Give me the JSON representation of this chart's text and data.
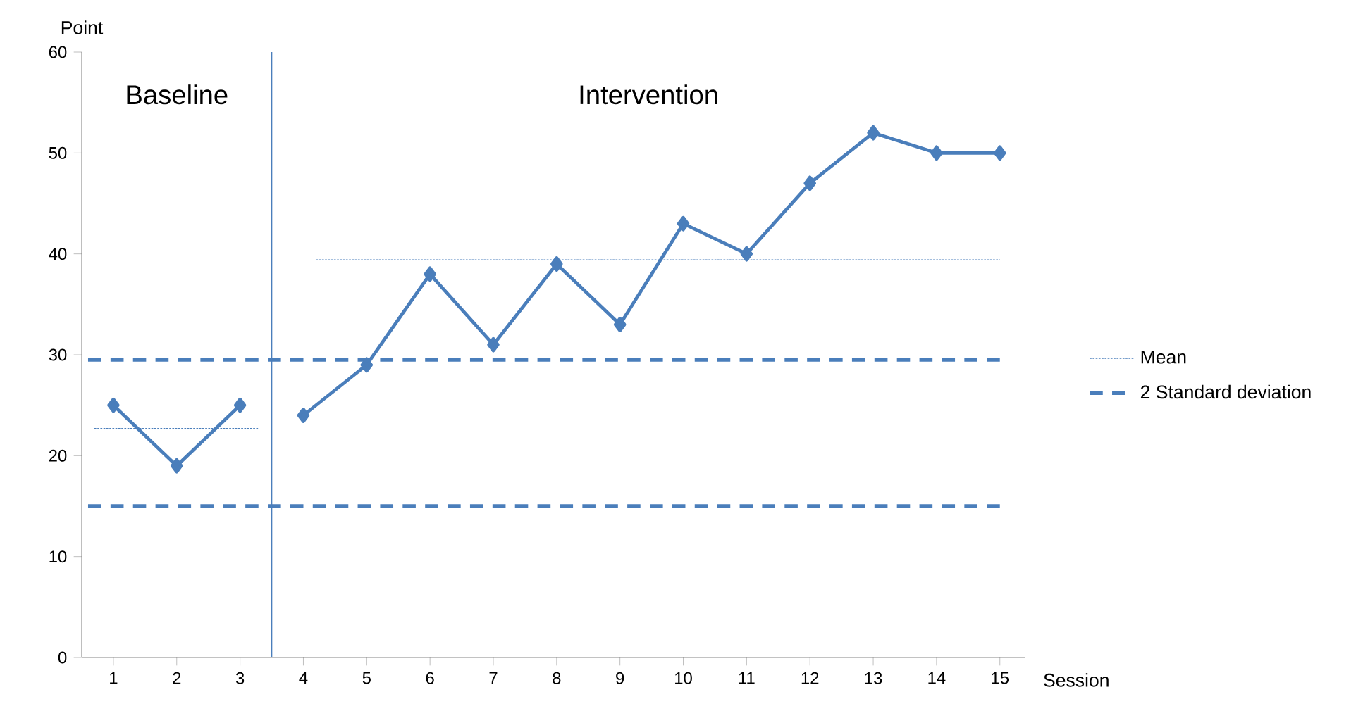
{
  "chart_data": {
    "type": "line",
    "xlabel": "Session",
    "ylabel": "Point",
    "xlim": [
      0.5,
      15.4
    ],
    "ylim": [
      0,
      60
    ],
    "xticks": [
      1,
      2,
      3,
      4,
      5,
      6,
      7,
      8,
      9,
      10,
      11,
      12,
      13,
      14,
      15
    ],
    "yticks": [
      0,
      10,
      20,
      30,
      40,
      50,
      60
    ],
    "grid": false,
    "legend": "right",
    "marker": "diamond",
    "line_style": "solid",
    "annotations": [
      "Baseline",
      "Intervention"
    ],
    "ref_lines": [
      {
        "axis": "x",
        "value": 3.5,
        "color": "#4a7ebb",
        "line_style": "solid"
      }
    ],
    "series": [
      {
        "color": "#4a7ebb",
        "x": [
          1,
          2,
          3
        ],
        "values": [
          25,
          19,
          25
        ]
      },
      {
        "color": "#4a7ebb",
        "x": [
          4,
          5,
          6,
          7,
          8,
          9,
          10,
          11,
          12,
          13,
          14,
          15
        ],
        "values": [
          24,
          29,
          38,
          31,
          39,
          33,
          43,
          40,
          47,
          52,
          50,
          50
        ]
      },
      {
        "name": "Mean",
        "color": "#4a7ebb",
        "type": "line",
        "marker": "none",
        "line_style": "dotted",
        "x": [
          0.7,
          3.3
        ],
        "values": [
          22.7,
          22.7
        ]
      },
      {
        "color": "#4a7ebb",
        "type": "line",
        "marker": "none",
        "line_style": "dotted",
        "x": [
          4.2,
          15
        ],
        "values": [
          39.4,
          39.4
        ]
      },
      {
        "name": "2 Standard deviation",
        "color": "#4a7ebb",
        "type": "line",
        "marker": "none",
        "line_style": "dashed",
        "x": [
          0.6,
          15
        ],
        "values": [
          29.5,
          29.5
        ]
      },
      {
        "color": "#4a7ebb",
        "type": "line",
        "marker": "none",
        "line_style": "dashed",
        "x": [
          0.6,
          15
        ],
        "values": [
          15,
          15
        ]
      }
    ]
  }
}
